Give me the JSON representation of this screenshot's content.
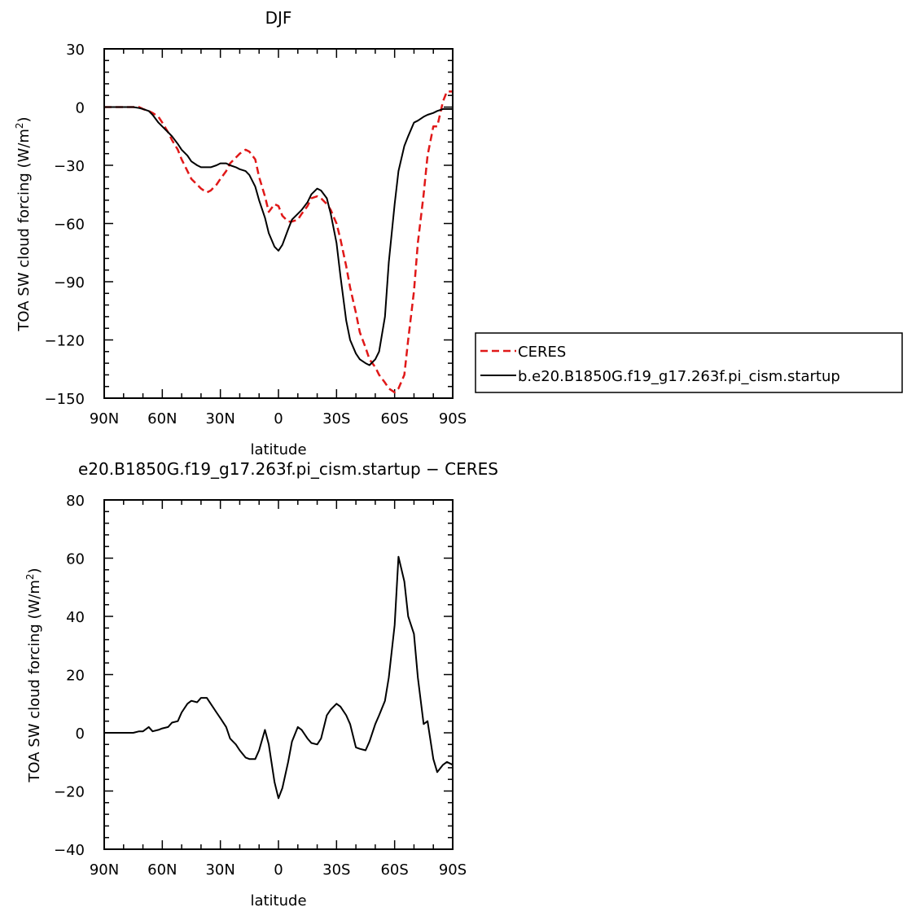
{
  "chart_data": [
    {
      "type": "line",
      "title": "DJF",
      "xlabel": "latitude",
      "ylabel_main": "TOA SW cloud forcing (W/m",
      "ylabel_sup": "2",
      "ylabel_close": ")",
      "xlim": [
        -90,
        90
      ],
      "ylim": [
        -150,
        30
      ],
      "xticks": [
        -90,
        -60,
        -30,
        0,
        30,
        60,
        90
      ],
      "xtick_labels": [
        "90N",
        "60N",
        "30N",
        "0",
        "30S",
        "60S",
        "90S"
      ],
      "yticks": [
        30,
        0,
        -30,
        -60,
        -90,
        -120,
        -150
      ],
      "ytick_labels": [
        "30",
        "0",
        "−30",
        "−60",
        "−90",
        "−120",
        "−150"
      ],
      "legend_position": "right",
      "series": [
        {
          "name": "CERES",
          "color": "#e01818",
          "style": "dashed",
          "x": [
            -90,
            -85,
            -80,
            -75,
            -72,
            -70,
            -67,
            -65,
            -62,
            -60,
            -57,
            -55,
            -52,
            -50,
            -47,
            -45,
            -42,
            -40,
            -37,
            -35,
            -32,
            -30,
            -27,
            -25,
            -22,
            -20,
            -17,
            -15,
            -12,
            -10,
            -7,
            -5,
            -2,
            0,
            2,
            5,
            7,
            10,
            12,
            15,
            17,
            20,
            22,
            25,
            27,
            30,
            32,
            35,
            37,
            40,
            42,
            45,
            47,
            50,
            52,
            55,
            57,
            60,
            62,
            65,
            67,
            70,
            72,
            75,
            77,
            80,
            82,
            85,
            87,
            90
          ],
          "y": [
            0,
            0,
            0,
            0,
            0,
            -1,
            -2,
            -3,
            -5,
            -8,
            -13,
            -17,
            -22,
            -27,
            -33,
            -37,
            -40,
            -42,
            -44,
            -43,
            -40,
            -37,
            -33,
            -29,
            -26,
            -24,
            -22,
            -23,
            -27,
            -36,
            -46,
            -54,
            -50,
            -51,
            -56,
            -59,
            -59,
            -58,
            -55,
            -51,
            -47,
            -46,
            -47,
            -50,
            -53,
            -60,
            -68,
            -82,
            -93,
            -106,
            -116,
            -124,
            -130,
            -134,
            -138,
            -142,
            -145,
            -147,
            -145,
            -138,
            -120,
            -95,
            -70,
            -45,
            -25,
            -10,
            -10,
            3,
            8,
            8
          ]
        },
        {
          "name": "b.e20.B1850G.f19_g17.263f.pi_cism.startup",
          "color": "#000000",
          "style": "solid",
          "x": [
            -90,
            -85,
            -80,
            -75,
            -72,
            -70,
            -67,
            -65,
            -62,
            -60,
            -57,
            -55,
            -52,
            -50,
            -47,
            -45,
            -42,
            -40,
            -37,
            -35,
            -32,
            -30,
            -27,
            -25,
            -22,
            -20,
            -17,
            -15,
            -12,
            -10,
            -7,
            -5,
            -2,
            0,
            2,
            5,
            7,
            10,
            12,
            15,
            17,
            20,
            22,
            25,
            27,
            30,
            32,
            35,
            37,
            40,
            42,
            45,
            47,
            50,
            52,
            55,
            57,
            60,
            62,
            65,
            67,
            70,
            72,
            75,
            77,
            80,
            82,
            85,
            87,
            90
          ],
          "y": [
            0,
            0,
            0,
            0,
            -0.5,
            -1,
            -2,
            -4,
            -8,
            -10,
            -13,
            -15,
            -19,
            -22,
            -25,
            -28,
            -30,
            -31,
            -31,
            -31,
            -30,
            -29,
            -29,
            -30,
            -31,
            -32,
            -33,
            -35,
            -41,
            -48,
            -57,
            -65,
            -72,
            -74,
            -71,
            -63,
            -58,
            -55,
            -53,
            -49,
            -45,
            -42,
            -43,
            -47,
            -55,
            -70,
            -87,
            -110,
            -120,
            -127,
            -130,
            -132,
            -133,
            -130,
            -126,
            -108,
            -80,
            -50,
            -33,
            -20,
            -15,
            -8,
            -7,
            -5,
            -4,
            -3,
            -2,
            -1,
            -1,
            -1
          ]
        }
      ]
    },
    {
      "type": "line",
      "title": "e20.B1850G.f19_g17.263f.pi_cism.startup − CERES",
      "xlabel": "latitude",
      "ylabel_main": "TOA SW cloud forcing (W/m",
      "ylabel_sup": "2",
      "ylabel_close": ")",
      "xlim": [
        -90,
        90
      ],
      "ylim": [
        -40,
        80
      ],
      "xticks": [
        -90,
        -60,
        -30,
        0,
        30,
        60,
        90
      ],
      "xtick_labels": [
        "90N",
        "60N",
        "30N",
        "0",
        "30S",
        "60S",
        "90S"
      ],
      "yticks": [
        80,
        60,
        40,
        20,
        0,
        -20,
        -40
      ],
      "ytick_labels": [
        "80",
        "60",
        "40",
        "20",
        "0",
        "−20",
        "−40"
      ],
      "series": [
        {
          "color": "#000000",
          "style": "solid",
          "x": [
            -90,
            -85,
            -80,
            -75,
            -72,
            -70,
            -67,
            -65,
            -62,
            -60,
            -57,
            -55,
            -52,
            -50,
            -47,
            -45,
            -42,
            -40,
            -37,
            -35,
            -32,
            -30,
            -27,
            -25,
            -22,
            -20,
            -17,
            -15,
            -12,
            -10,
            -7,
            -5,
            -2,
            0,
            2,
            5,
            7,
            10,
            12,
            15,
            17,
            20,
            22,
            25,
            27,
            30,
            32,
            35,
            37,
            40,
            42,
            45,
            47,
            50,
            52,
            55,
            57,
            60,
            62,
            65,
            67,
            70,
            72,
            75,
            77,
            80,
            82,
            85,
            87,
            90
          ],
          "y": [
            0,
            0,
            0,
            0,
            0.5,
            0.5,
            2,
            0.5,
            1,
            1.5,
            2,
            3.5,
            4,
            7,
            10,
            11,
            10.5,
            12,
            12,
            10,
            7,
            5,
            2,
            -2,
            -4,
            -6,
            -8.5,
            -9,
            -9,
            -6,
            1,
            -4,
            -17,
            -22.5,
            -19,
            -10,
            -3,
            2,
            1,
            -2,
            -3.5,
            -4,
            -2,
            6,
            8,
            10,
            9,
            6,
            3,
            -5,
            -5.5,
            -6,
            -3,
            3,
            6,
            11,
            19,
            37,
            60.5,
            52,
            40,
            34,
            19,
            3,
            4,
            -9,
            -13.5,
            -11,
            -10,
            -11
          ]
        }
      ]
    }
  ]
}
